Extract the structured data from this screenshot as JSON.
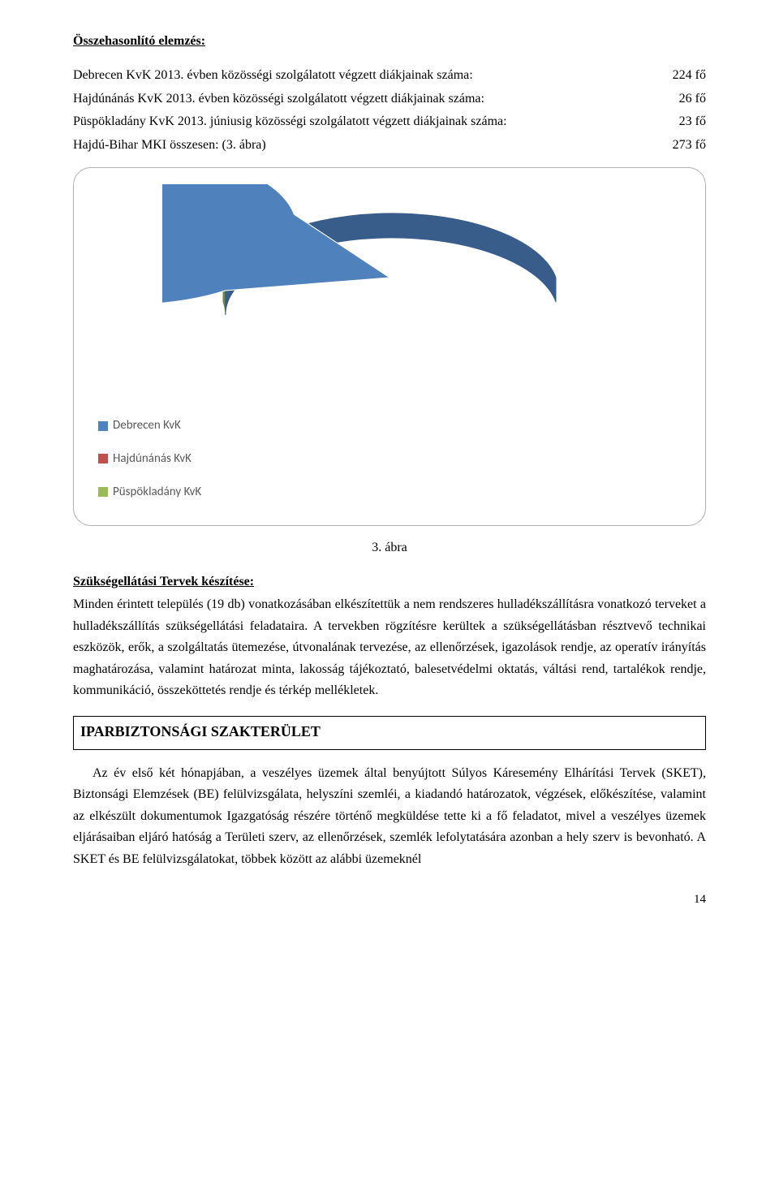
{
  "heading1": "Összehasonlító elemzés:",
  "stats": [
    {
      "label": "Debrecen KvK 2013. évben közösségi szolgálatott végzett diákjainak száma:",
      "value": "224 fő"
    },
    {
      "label": "Hajdúnánás KvK 2013. évben közösségi szolgálatott végzett diákjainak száma:",
      "value": "26 fő"
    },
    {
      "label": "Püspökladány KvK 2013. júniusig közösségi szolgálatott végzett diákjainak száma:",
      "value": "23 fő"
    },
    {
      "label": "Hajdú-Bihar MKI összesen: (3. ábra)",
      "value": "273 fő"
    }
  ],
  "chart": {
    "type": "pie",
    "series": [
      {
        "name": "Debrecen KvK",
        "value": 224,
        "color": "#4F81BD",
        "dark": "#385D8A"
      },
      {
        "name": "Hajdúnánás KvK",
        "value": 26,
        "color": "#C0504D",
        "dark": "#8C3836"
      },
      {
        "name": "Püspökladány KvK",
        "value": 23,
        "color": "#9BBB59",
        "dark": "#71893F"
      }
    ],
    "background_color": "#ffffff",
    "border_color": "#b0b0b0",
    "legend_font_family": "Calibri, Arial, sans-serif",
    "legend_font_size": 15,
    "legend_color": "#595959",
    "legend_swatch": [
      "#4F81BD",
      "#C0504D",
      "#9BBB59"
    ]
  },
  "chart_caption": "3. ábra",
  "heading2": "Szükségellátási Tervek készítése:",
  "para1": "Minden érintett település (19 db) vonatkozásában elkészítettük a nem rendszeres hulladékszállításra vonatkozó terveket a hulladékszállítás szükségellátási feladataira. A tervekben rögzítésre kerültek a szükségellátásban résztvevő technikai eszközök, erők, a szolgáltatás ütemezése, útvonalának tervezése, az ellenőrzések, igazolások rendje, az operatív irányítás maghatározása, valamint határozat minta, lakosság tájékoztató, balesetvédelmi oktatás, váltási rend, tartalékok rendje, kommunikáció, összeköttetés rendje és térkép mellékletek.",
  "section_title": "IPARBIZTONSÁGI SZAKTERÜLET",
  "para2": "Az év első két hónapjában, a veszélyes üzemek által benyújtott Súlyos Káresemény Elhárítási Tervek (SKET), Biztonsági Elemzések (BE) felülvizsgálata, helyszíni szemléi, a kiadandó határozatok, végzések, előkészítése, valamint az elkészült dokumentumok Igazgatóság részére történő megküldése tette ki a fő feladatot, mivel a veszélyes üzemek eljárásaiban eljáró hatóság a Területi szerv, az ellenőrzések, szemlék lefolytatására azonban a hely szerv is bevonható. A SKET és BE felülvizsgálatokat, többek között az alábbi üzemeknél",
  "page_number": "14"
}
